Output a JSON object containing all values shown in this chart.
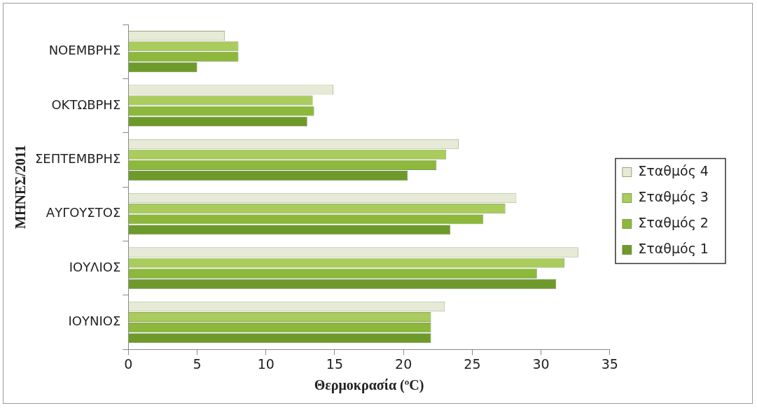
{
  "chart_data": {
    "type": "bar",
    "orientation": "horizontal",
    "xlabel": "Θερμοκρασία (ºC)",
    "ylabel": "ΜΗΝΕΣ/2011",
    "categories": [
      "ΝΟΕΜΒΡΗΣ",
      "ΟΚΤΩΒΡΗΣ",
      "ΣΕΠΤΕΜΒΡΗΣ",
      "ΑΥΓΟΥΣΤΟΣ",
      "ΙΟΥΛΙΟΣ",
      "ΙΟΥΝΙΟΣ"
    ],
    "series": [
      {
        "name": "Σταθμός 1",
        "color": "#6e9a2c",
        "values": [
          5,
          13,
          20.3,
          23.4,
          31.1,
          22
        ]
      },
      {
        "name": "Σταθμός 2",
        "color": "#8db83c",
        "values": [
          8,
          13.5,
          22.4,
          25.8,
          29.7,
          22
        ]
      },
      {
        "name": "Σταθμός 3",
        "color": "#a9cc5c",
        "values": [
          8,
          13.4,
          23.1,
          27.4,
          31.7,
          22
        ]
      },
      {
        "name": "Σταθμός 4",
        "color": "#e6ead6",
        "values": [
          7,
          14.9,
          24,
          28.2,
          32.7,
          23
        ]
      }
    ],
    "xlim": [
      0,
      35
    ],
    "xticks": [
      0,
      5,
      10,
      15,
      20,
      25,
      30,
      35
    ],
    "grid": false,
    "legend": "right"
  }
}
